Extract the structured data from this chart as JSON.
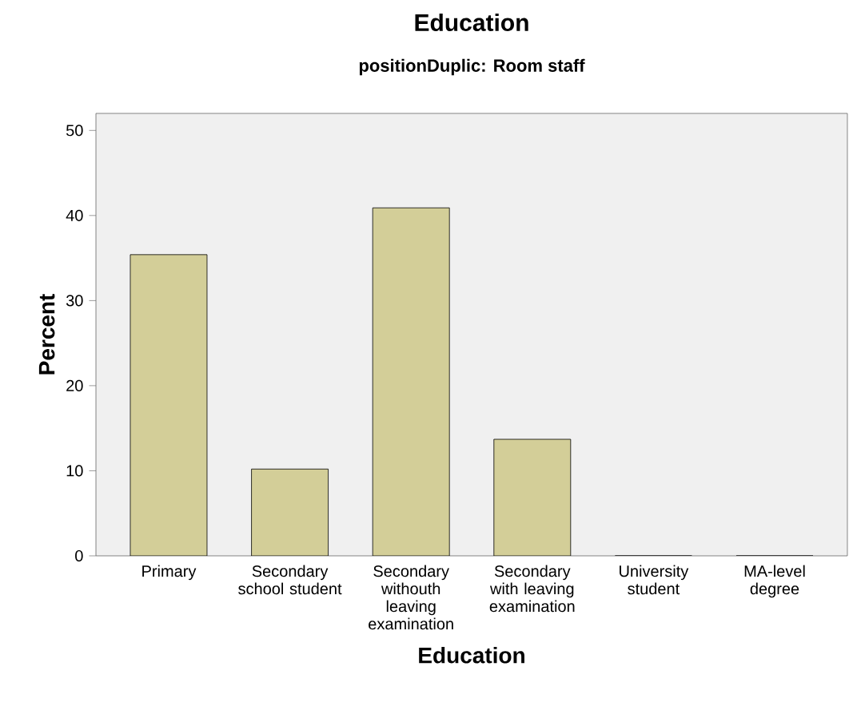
{
  "chart_data": {
    "type": "bar",
    "title": "Education",
    "subtitle": "positionDuplic: Room staff",
    "xlabel": "Education",
    "ylabel": "Percent",
    "categories": [
      "Primary",
      "Secondary school student",
      "Secondary withouth leaving examination",
      "Secondary with leaving examination",
      "University student",
      "MA-level degree"
    ],
    "values": [
      35.4,
      10.2,
      40.9,
      13.7,
      0,
      0
    ],
    "color": "#d3ce98",
    "ylim": [
      0,
      52
    ],
    "yticks": [
      0,
      10,
      20,
      30,
      40,
      50
    ],
    "grid": false
  }
}
